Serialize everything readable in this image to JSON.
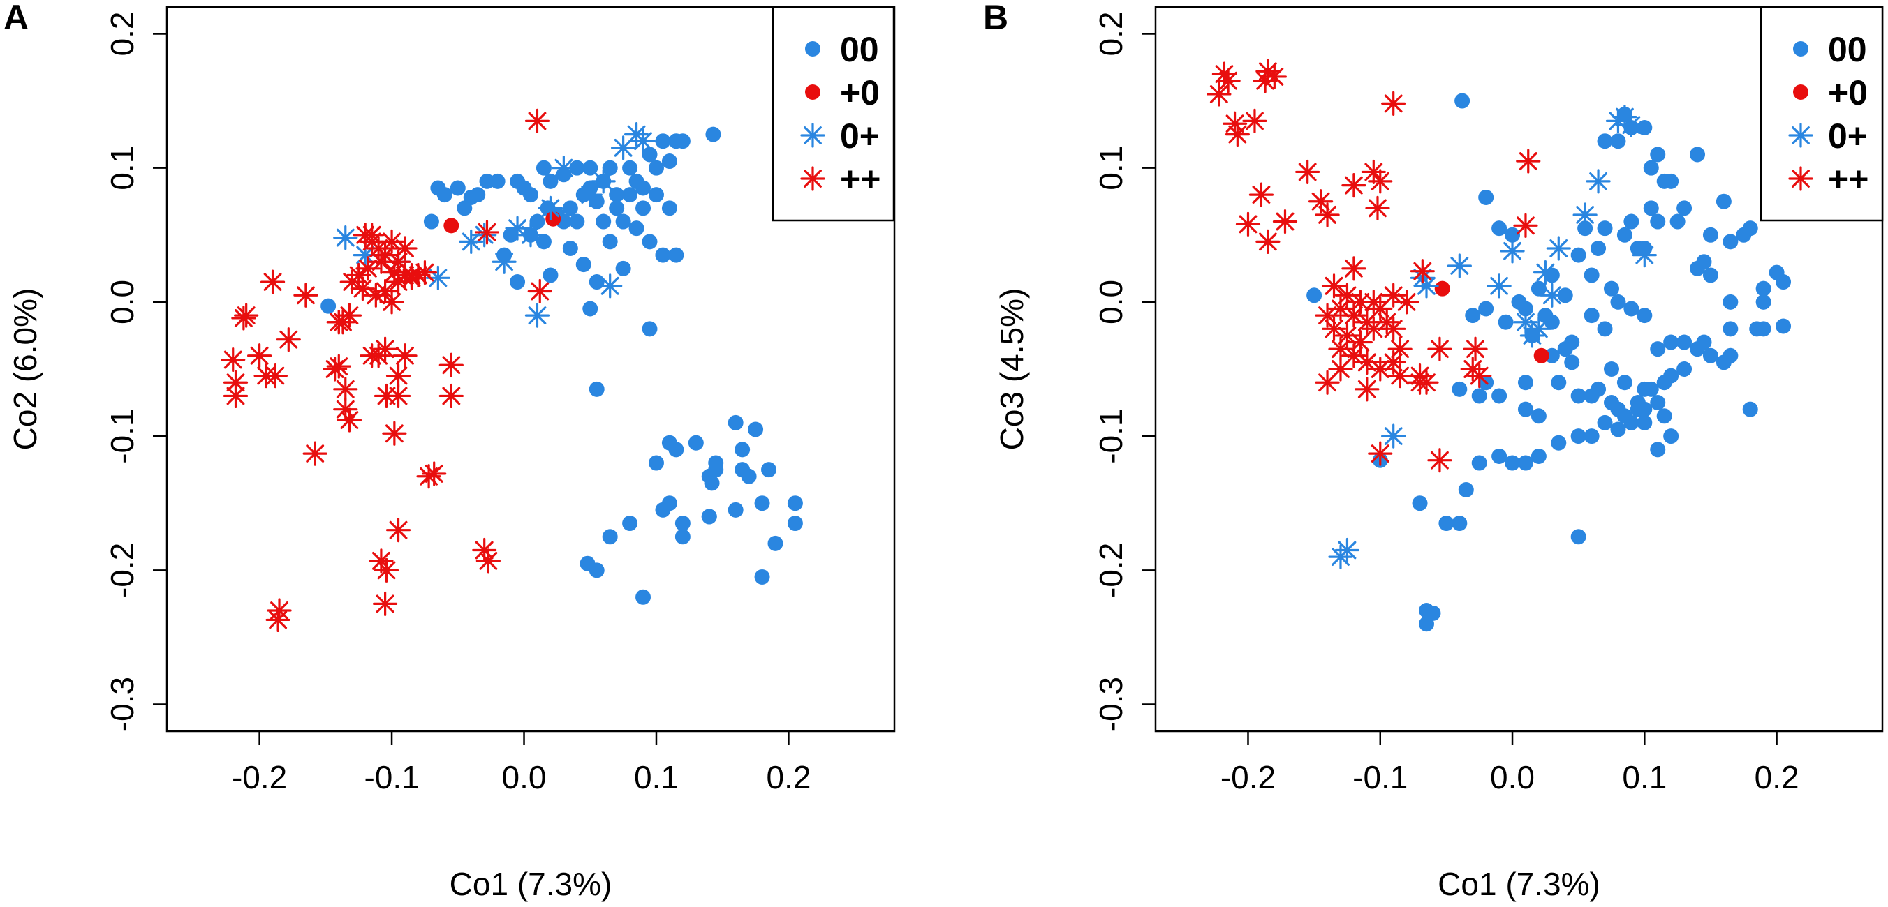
{
  "colors": {
    "blue": "#2a86e0",
    "red": "#e80e0e"
  },
  "chart_data": [
    {
      "type": "scatter",
      "panel_label": "A",
      "xlabel": "Co1 (7.3%)",
      "ylabel": "Co2 (6.0%)",
      "xlim": [
        -0.27,
        0.28
      ],
      "ylim": [
        -0.32,
        0.22
      ],
      "xticks": [
        -0.2,
        -0.1,
        0.0,
        0.1,
        0.2
      ],
      "xtick_labels": [
        "-0.2",
        "-0.1",
        "0.0",
        "0.1",
        "0.2"
      ],
      "yticks": [
        -0.3,
        -0.2,
        -0.1,
        0.0,
        0.1,
        0.2
      ],
      "ytick_labels": [
        "-0.3",
        "-0.2",
        "-0.1",
        "0.0",
        "0.1",
        "0.2"
      ],
      "legend": {
        "position": "top-right",
        "entries": [
          {
            "label": "00",
            "marker": "dot",
            "color": "#2a86e0"
          },
          {
            "label": "+0",
            "marker": "dot",
            "color": "#e80e0e"
          },
          {
            "label": "0+",
            "marker": "star",
            "color": "#2a86e0"
          },
          {
            "label": "++",
            "marker": "star",
            "color": "#e80e0e"
          }
        ]
      },
      "series": [
        {
          "name": "00",
          "marker": "dot",
          "color": "#2a86e0",
          "x": [
            -0.148,
            -0.07,
            -0.065,
            -0.06,
            -0.05,
            -0.045,
            -0.04,
            -0.035,
            -0.028,
            -0.02,
            -0.015,
            -0.01,
            -0.005,
            0.0,
            0.005,
            0.01,
            0.015,
            0.018,
            0.02,
            0.025,
            0.03,
            0.035,
            0.04,
            0.045,
            0.05,
            0.055,
            0.06,
            0.065,
            0.07,
            0.075,
            0.08,
            0.085,
            0.09,
            0.095,
            0.1,
            0.105,
            0.11,
            0.115,
            0.12,
            0.143,
            0.03,
            0.04,
            0.05,
            0.06,
            0.07,
            0.08,
            0.09,
            0.1,
            0.11,
            0.02,
            0.045,
            0.065,
            0.085,
            0.105,
            0.115,
            0.055,
            0.075,
            0.095,
            0.035,
            -0.005,
            0.005,
            0.015,
            0.095,
            0.05,
            0.055,
            0.1,
            0.11,
            0.115,
            0.13,
            0.14,
            0.145,
            0.16,
            0.165,
            0.17,
            0.175,
            0.18,
            0.185,
            0.19,
            0.205,
            0.205,
            0.18,
            0.165,
            0.14,
            0.12,
            0.11,
            0.105,
            0.09,
            0.08,
            0.065,
            0.055,
            0.048,
            0.16,
            0.14,
            0.12,
            0.142,
            0.145
          ],
          "y": [
            -0.003,
            0.06,
            0.085,
            0.08,
            0.085,
            0.07,
            0.078,
            0.08,
            0.09,
            0.09,
            0.035,
            0.05,
            0.09,
            0.085,
            0.08,
            0.06,
            0.1,
            0.07,
            0.09,
            0.065,
            0.06,
            0.07,
            0.06,
            0.08,
            0.1,
            0.075,
            0.09,
            0.1,
            0.08,
            0.06,
            0.1,
            0.09,
            0.085,
            0.11,
            0.08,
            0.12,
            0.105,
            0.12,
            0.12,
            0.125,
            0.095,
            0.1,
            0.085,
            0.06,
            0.07,
            0.08,
            0.07,
            0.1,
            0.07,
            0.02,
            0.028,
            0.045,
            0.055,
            0.035,
            0.035,
            0.015,
            0.025,
            0.045,
            0.04,
            0.015,
            0.05,
            0.045,
            -0.02,
            -0.005,
            -0.065,
            -0.12,
            -0.105,
            -0.11,
            -0.105,
            -0.13,
            -0.125,
            -0.09,
            -0.11,
            -0.13,
            -0.095,
            -0.15,
            -0.125,
            -0.18,
            -0.15,
            -0.165,
            -0.205,
            -0.125,
            -0.16,
            -0.175,
            -0.15,
            -0.155,
            -0.22,
            -0.165,
            -0.175,
            -0.2,
            -0.195,
            -0.155,
            -0.16,
            -0.165,
            -0.135,
            -0.12
          ]
        },
        {
          "name": "+0",
          "marker": "dot",
          "color": "#e80e0e",
          "x": [
            -0.055,
            0.022
          ],
          "y": [
            0.057,
            0.062
          ]
        },
        {
          "name": "0+",
          "marker": "star",
          "color": "#2a86e0",
          "x": [
            0.085,
            0.09,
            0.075,
            0.06,
            0.05,
            0.03,
            0.02,
            0.005,
            -0.005,
            -0.015,
            -0.03,
            -0.04,
            -0.065,
            -0.095,
            -0.135,
            -0.12,
            0.01,
            0.065
          ],
          "y": [
            0.125,
            0.12,
            0.115,
            0.09,
            0.08,
            0.1,
            0.07,
            0.05,
            0.055,
            0.03,
            0.05,
            0.045,
            0.018,
            0.03,
            0.048,
            0.035,
            -0.01,
            0.012
          ]
        },
        {
          "name": "++",
          "marker": "star",
          "color": "#e80e0e",
          "x": [
            0.01,
            -0.028,
            -0.12,
            -0.115,
            -0.11,
            -0.105,
            -0.1,
            -0.095,
            -0.125,
            -0.13,
            -0.118,
            -0.108,
            -0.098,
            -0.09,
            -0.085,
            -0.08,
            -0.075,
            -0.112,
            -0.122,
            -0.132,
            -0.105,
            -0.095,
            -0.085,
            -0.19,
            -0.21,
            -0.212,
            -0.165,
            -0.14,
            -0.137,
            -0.22,
            -0.218,
            -0.2,
            -0.195,
            -0.218,
            -0.188,
            -0.178,
            -0.14,
            -0.135,
            -0.132,
            -0.115,
            -0.11,
            -0.105,
            -0.095,
            -0.09,
            -0.055,
            -0.055,
            -0.095,
            -0.098,
            -0.104,
            -0.135,
            -0.143,
            -0.158,
            -0.072,
            -0.068,
            -0.095,
            -0.108,
            -0.104,
            -0.03,
            -0.027,
            -0.105,
            -0.185,
            -0.186,
            0.012,
            -0.14,
            -0.115,
            -0.1,
            -0.09
          ],
          "y": [
            0.135,
            0.052,
            0.05,
            0.045,
            0.04,
            0.035,
            0.045,
            0.03,
            0.02,
            0.015,
            0.025,
            0.03,
            0.022,
            0.04,
            0.02,
            0.02,
            0.022,
            0.005,
            0.01,
            -0.01,
            0.008,
            0.015,
            0.018,
            0.015,
            -0.01,
            -0.012,
            0.005,
            -0.015,
            -0.015,
            -0.043,
            -0.06,
            -0.04,
            -0.055,
            -0.07,
            -0.055,
            -0.028,
            -0.048,
            -0.065,
            -0.088,
            -0.04,
            -0.04,
            -0.035,
            -0.055,
            -0.04,
            -0.047,
            -0.07,
            -0.07,
            -0.098,
            -0.07,
            -0.08,
            -0.05,
            -0.113,
            -0.13,
            -0.128,
            -0.17,
            -0.193,
            -0.2,
            -0.185,
            -0.193,
            -0.225,
            -0.23,
            -0.237,
            0.008,
            -0.015,
            0.05,
            0.0,
            0.02
          ]
        }
      ]
    },
    {
      "type": "scatter",
      "panel_label": "B",
      "xlabel": "Co1 (7.3%)",
      "ylabel": "Co3 (4.5%)",
      "xlim": [
        -0.27,
        0.28
      ],
      "ylim": [
        -0.32,
        0.22
      ],
      "xticks": [
        -0.2,
        -0.1,
        0.0,
        0.1,
        0.2
      ],
      "xtick_labels": [
        "-0.2",
        "-0.1",
        "0.0",
        "0.1",
        "0.2"
      ],
      "yticks": [
        -0.3,
        -0.2,
        -0.1,
        0.0,
        0.1,
        0.2
      ],
      "ytick_labels": [
        "-0.3",
        "-0.2",
        "-0.1",
        "0.0",
        "0.1",
        "0.2"
      ],
      "legend": {
        "position": "top-right",
        "entries": [
          {
            "label": "00",
            "marker": "dot",
            "color": "#2a86e0"
          },
          {
            "label": "+0",
            "marker": "dot",
            "color": "#e80e0e"
          },
          {
            "label": "0+",
            "marker": "star",
            "color": "#2a86e0"
          },
          {
            "label": "++",
            "marker": "star",
            "color": "#e80e0e"
          }
        ]
      },
      "series": [
        {
          "name": "00",
          "marker": "dot",
          "color": "#2a86e0",
          "x": [
            -0.038,
            -0.15,
            -0.02,
            -0.01,
            0.0,
            0.01,
            0.02,
            0.025,
            0.03,
            0.04,
            0.05,
            0.055,
            0.06,
            0.065,
            0.07,
            0.075,
            0.08,
            0.085,
            0.09,
            0.095,
            0.1,
            0.105,
            0.11,
            0.115,
            0.12,
            0.125,
            0.13,
            0.14,
            0.145,
            0.15,
            0.16,
            0.165,
            0.175,
            0.185,
            0.19,
            0.2,
            0.205,
            -0.03,
            -0.02,
            -0.005,
            0.005,
            0.015,
            0.03,
            0.045,
            0.06,
            0.07,
            0.09,
            0.1,
            0.11,
            0.12,
            0.13,
            0.15,
            0.165,
            0.18,
            0.205,
            0.14,
            0.16,
            0.045,
            0.065,
            0.085,
            0.1,
            0.035,
            0.075,
            0.095,
            0.115,
            0.05,
            0.075,
            0.095,
            0.105,
            0.115,
            0.06,
            0.08,
            0.09,
            0.1,
            0.11,
            0.12,
            0.07,
            0.09,
            0.1,
            0.085,
            0.08,
            0.105,
            0.11,
            0.14,
            0.15,
            0.165,
            0.18,
            0.19,
            0.19,
            0.165,
            0.145,
            0.13,
            0.12,
            -0.025,
            -0.01,
            0.0,
            0.01,
            0.02,
            0.035,
            0.05,
            0.06,
            0.07,
            0.08,
            0.085,
            0.1,
            0.11,
            -0.02,
            -0.04,
            -0.035,
            -0.04,
            -0.05,
            -0.07,
            -0.025,
            -0.01,
            0.01,
            0.02,
            0.05,
            -0.065,
            -0.06,
            -0.065,
            -0.1,
            0.03,
            0.04,
            0.01
          ],
          "y": [
            0.15,
            0.005,
            0.078,
            0.055,
            0.05,
            -0.005,
            0.01,
            -0.01,
            0.02,
            0.005,
            0.035,
            0.055,
            0.02,
            0.04,
            0.055,
            0.01,
            0.0,
            0.05,
            0.06,
            0.04,
            0.04,
            0.1,
            0.11,
            0.09,
            0.09,
            0.06,
            0.07,
            0.025,
            0.03,
            0.02,
            0.075,
            0.0,
            0.05,
            -0.02,
            -0.02,
            0.022,
            0.015,
            -0.01,
            -0.005,
            -0.015,
            0.0,
            -0.025,
            -0.015,
            -0.03,
            -0.01,
            -0.02,
            -0.005,
            -0.01,
            -0.035,
            -0.03,
            -0.03,
            -0.04,
            -0.04,
            -0.08,
            -0.018,
            -0.035,
            -0.045,
            -0.045,
            -0.065,
            -0.06,
            -0.065,
            -0.06,
            -0.075,
            -0.08,
            -0.085,
            -0.07,
            -0.05,
            -0.075,
            -0.065,
            -0.06,
            -0.07,
            -0.08,
            -0.09,
            -0.09,
            -0.11,
            -0.1,
            0.12,
            0.13,
            0.13,
            0.14,
            0.12,
            0.07,
            0.06,
            0.11,
            0.05,
            0.045,
            0.055,
            0.01,
            0.0,
            -0.02,
            -0.03,
            -0.05,
            -0.055,
            -0.12,
            -0.115,
            -0.12,
            -0.12,
            -0.115,
            -0.105,
            -0.1,
            -0.1,
            -0.09,
            -0.095,
            -0.085,
            -0.08,
            -0.075,
            -0.06,
            -0.065,
            -0.14,
            -0.165,
            -0.165,
            -0.15,
            -0.07,
            -0.07,
            -0.08,
            -0.085,
            -0.175,
            -0.23,
            -0.232,
            -0.24,
            -0.118,
            -0.04,
            -0.035,
            -0.06
          ]
        },
        {
          "name": "+0",
          "marker": "dot",
          "color": "#e80e0e",
          "x": [
            -0.053,
            0.022
          ],
          "y": [
            0.01,
            -0.04
          ]
        },
        {
          "name": "0+",
          "marker": "star",
          "color": "#2a86e0",
          "x": [
            0.08,
            0.09,
            0.085,
            0.065,
            0.055,
            0.035,
            0.02,
            0.0,
            -0.01,
            -0.04,
            -0.065,
            -0.068,
            -0.09,
            -0.13,
            -0.125,
            0.015,
            0.03,
            0.1,
            0.01,
            0.025
          ],
          "y": [
            0.135,
            0.132,
            0.138,
            0.09,
            0.065,
            0.04,
            -0.02,
            0.038,
            0.012,
            0.027,
            0.012,
            0.018,
            -0.1,
            -0.19,
            -0.185,
            -0.025,
            0.005,
            0.035,
            -0.015,
            0.022
          ],
          "note": "approximate positions"
        },
        {
          "name": "++",
          "marker": "star",
          "color": "#e80e0e",
          "x": [
            -0.218,
            -0.215,
            -0.222,
            -0.185,
            -0.18,
            -0.187,
            -0.21,
            -0.208,
            -0.195,
            -0.09,
            -0.19,
            -0.2,
            -0.172,
            -0.185,
            -0.155,
            -0.145,
            -0.14,
            -0.12,
            -0.105,
            -0.1,
            -0.102,
            -0.12,
            0.012,
            0.01,
            -0.135,
            -0.125,
            -0.115,
            -0.105,
            -0.13,
            -0.12,
            -0.11,
            -0.1,
            -0.09,
            -0.08,
            -0.14,
            -0.135,
            -0.125,
            -0.115,
            -0.105,
            -0.095,
            -0.09,
            -0.085,
            -0.13,
            -0.12,
            -0.11,
            -0.1,
            -0.09,
            -0.085,
            -0.14,
            -0.13,
            -0.11,
            -0.07,
            -0.065,
            -0.055,
            -0.028,
            -0.03,
            -0.025,
            -0.1,
            -0.068,
            -0.055,
            -0.07,
            -0.11
          ],
          "y": [
            0.17,
            0.165,
            0.155,
            0.172,
            0.168,
            0.165,
            0.133,
            0.125,
            0.135,
            0.148,
            0.08,
            0.058,
            0.06,
            0.045,
            0.097,
            0.075,
            0.065,
            0.087,
            0.097,
            0.09,
            0.07,
            0.025,
            0.105,
            0.057,
            0.012,
            0.005,
            0.0,
            0.0,
            -0.005,
            -0.01,
            -0.015,
            -0.005,
            0.005,
            0.0,
            -0.01,
            -0.02,
            -0.025,
            -0.03,
            -0.02,
            -0.015,
            -0.02,
            -0.035,
            -0.035,
            -0.04,
            -0.045,
            -0.05,
            -0.045,
            -0.055,
            -0.06,
            -0.05,
            -0.065,
            -0.06,
            -0.06,
            -0.035,
            -0.035,
            -0.05,
            -0.055,
            -0.113,
            0.023,
            -0.118,
            -0.055,
            -0.045
          ]
        }
      ]
    }
  ]
}
